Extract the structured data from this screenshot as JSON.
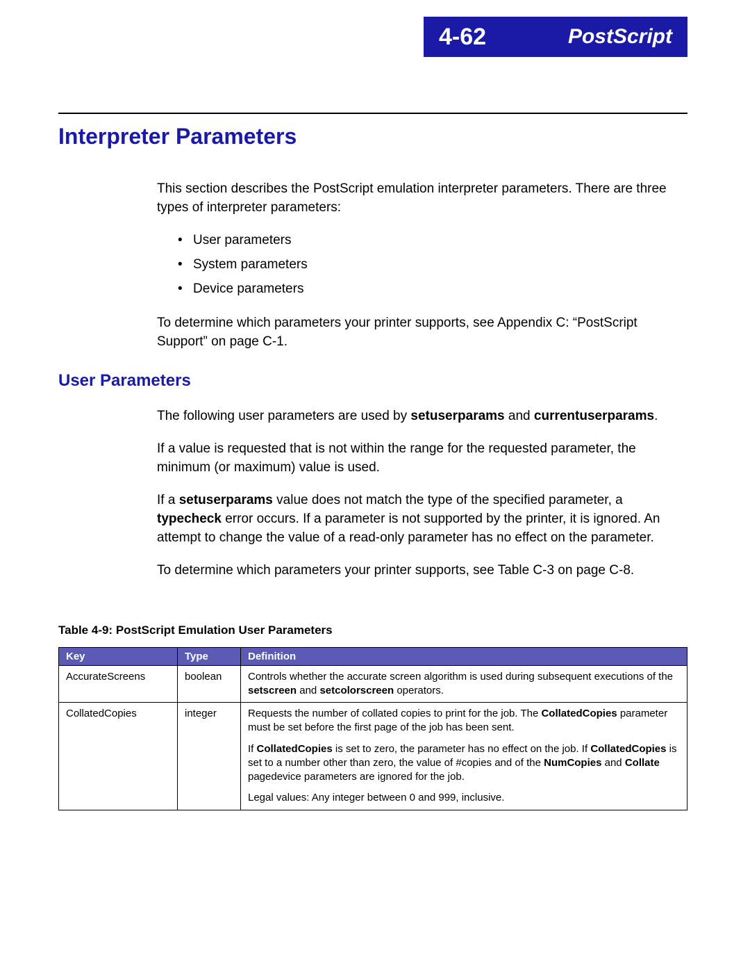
{
  "header": {
    "page_number": "4-62",
    "chapter": "PostScript"
  },
  "section_title": "Interpreter Parameters",
  "intro": "This section describes the PostScript emulation interpreter parameters. There are three types of interpreter parameters:",
  "bullets": [
    "User parameters",
    "System parameters",
    "Device parameters"
  ],
  "appendix_note_a": "To determine which parameters your printer supports, see Appendix C: “PostScript Support” on page C-1.",
  "sub_title": "User Parameters",
  "user_p1_a": "The following user parameters are used by ",
  "user_p1_b": "setuserparams",
  "user_p1_c": " and ",
  "user_p1_d": "currentuserparams",
  "user_p1_e": ".",
  "user_p2": "If a value is requested that is not within the range for the requested parameter, the minimum (or maximum) value is used.",
  "user_p3_a": "If a ",
  "user_p3_b": "setuserparams",
  "user_p3_c": " value does not match the type of the specified parameter, a ",
  "user_p3_d": "typecheck",
  "user_p3_e": " error occurs. If a parameter is not supported by the printer, it is ignored. An attempt to change the value of a read-only parameter has no effect on the parameter.",
  "user_p4": "To determine which parameters your printer supports, see Table C-3 on page C-8.",
  "table": {
    "caption": "Table 4-9:  PostScript Emulation User Parameters",
    "columns": [
      "Key",
      "Type",
      "Definition"
    ],
    "rows": [
      {
        "key": "AccurateScreens",
        "type": "boolean",
        "def_a": "Controls whether the accurate screen algorithm is used during subsequent executions of the ",
        "def_b": "setscreen",
        "def_c": " and ",
        "def_d": "setcolorscreen",
        "def_e": " operators."
      },
      {
        "key": "CollatedCopies",
        "type": "integer",
        "p1_a": "Requests the number of collated copies to print for the job. The ",
        "p1_b": "CollatedCopies",
        "p1_c": " parameter must be set before the first page of the job has been sent.",
        "p2_a": "If ",
        "p2_b": "CollatedCopies",
        "p2_c": " is set to zero, the parameter has no effect on the job. If ",
        "p2_d": "CollatedCopies",
        "p2_e": " is set to a number other than zero, the value of #copies and of the ",
        "p2_f": "NumCopies",
        "p2_g": " and ",
        "p2_h": "Collate",
        "p2_i": " pagedevice parameters are ignored for the job.",
        "p3": "Legal values: Any integer between 0 and 999, inclusive."
      }
    ],
    "header_bg": "#5b5bb5",
    "header_fg": "#ffffff",
    "border_color": "#000000"
  },
  "colors": {
    "heading": "#1a1aa6",
    "band_bg": "#1a1aa6",
    "band_fg": "#ffffff"
  }
}
